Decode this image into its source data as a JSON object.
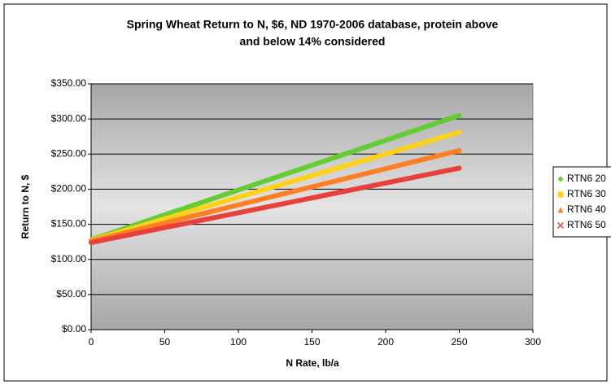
{
  "chart_data": {
    "type": "line",
    "title": "Spring Wheat Return to N, $6, ND 1970-2006 database, protein above",
    "title_line2": "and below 14% considered",
    "x_label": "N Rate, lb/a",
    "y_label": "Return to N, $",
    "x": [
      0,
      50,
      100,
      150,
      200,
      250
    ],
    "series": [
      {
        "name": "RTN6 20",
        "color": "#66cc33",
        "marker": "diamond",
        "values": [
          128,
          163.4,
          198.8,
          234.2,
          269.6,
          305
        ]
      },
      {
        "name": "RTN6 30",
        "color": "#ffd21a",
        "marker": "square",
        "values": [
          127,
          157.8,
          188.6,
          219.4,
          250.2,
          281
        ]
      },
      {
        "name": "RTN6 40",
        "color": "#ff7f27",
        "marker": "triangle",
        "values": [
          126,
          151.8,
          177.6,
          203.4,
          229.2,
          255
        ]
      },
      {
        "name": "RTN6 50",
        "color": "#e8403a",
        "marker": "x",
        "values": [
          124,
          145.2,
          166.4,
          187.6,
          208.8,
          230
        ]
      }
    ],
    "xlim": [
      0,
      300
    ],
    "xticks": [
      0,
      50,
      100,
      150,
      200,
      250,
      300
    ],
    "ylim": [
      0,
      350
    ],
    "yticks": [
      {
        "value": 0,
        "label": "$0.00"
      },
      {
        "value": 50,
        "label": "$50.00"
      },
      {
        "value": 100,
        "label": "$100.00"
      },
      {
        "value": 150,
        "label": "$150.00"
      },
      {
        "value": 200,
        "label": "$200.00"
      },
      {
        "value": 250,
        "label": "$250.00"
      },
      {
        "value": 300,
        "label": "$300.00"
      },
      {
        "value": 350,
        "label": "$350.00"
      }
    ],
    "grid": true,
    "legend": "right"
  }
}
